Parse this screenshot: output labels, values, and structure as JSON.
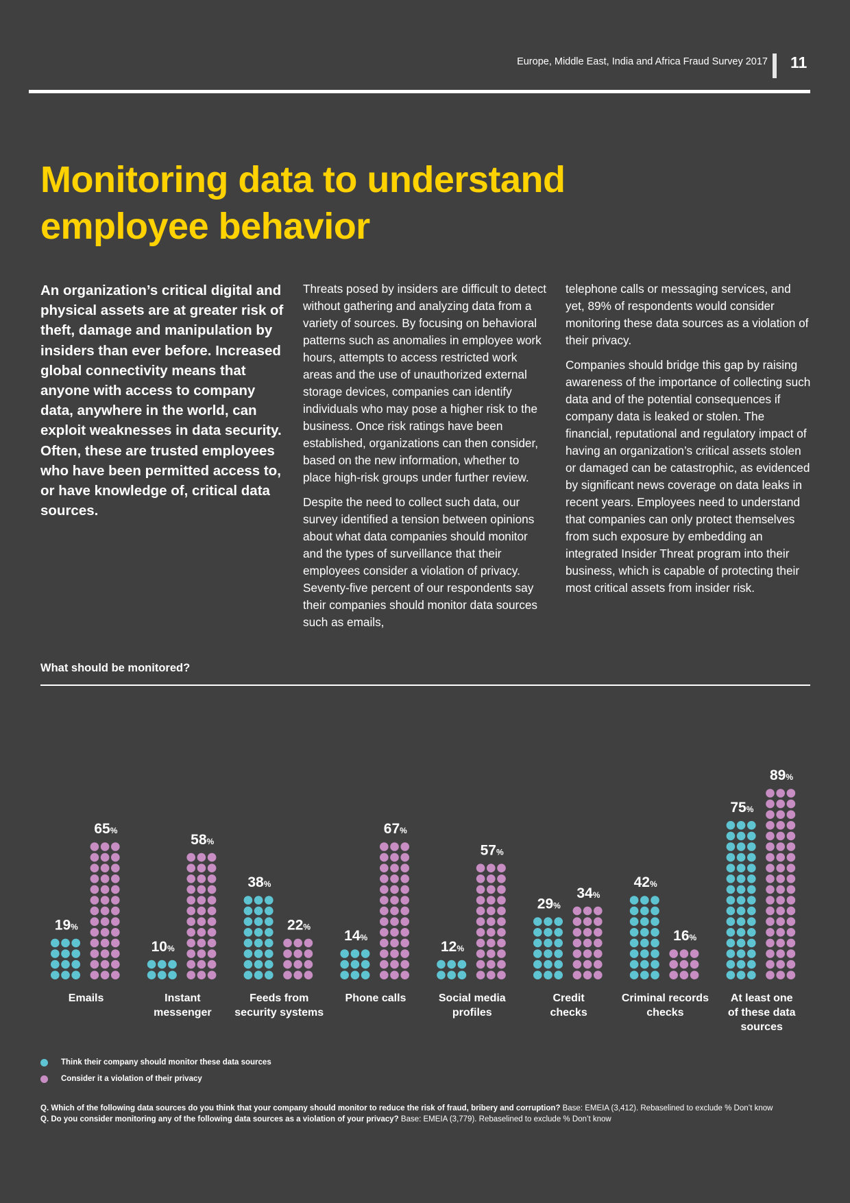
{
  "header": {
    "title": "Europe, Middle East, India and Africa Fraud Survey 2017",
    "page_number": "11"
  },
  "page_title": "Monitoring data to understand employee behavior",
  "intro": "An organization’s critical digital and physical assets are at greater risk of theft, damage and manipulation by insiders than ever before. Increased global connectivity means that anyone with access to company data, anywhere in the world, can exploit weaknesses in data security. Often, these are trusted employees who have been permitted access to, or have knowledge of, critical data sources.",
  "body": {
    "p1": "Threats posed by insiders are difficult to detect without gathering and analyzing data from a variety of sources. By focusing on behavioral patterns such as anomalies in employee work hours, attempts to access restricted work areas and the use of unauthorized external storage devices, companies can identify individuals who may pose a higher risk to the business. Once risk ratings have been established, organizations can then consider, based on the new information, whether to place high-risk groups under further review.",
    "p2": "Despite the need to collect such data, our survey identified a tension between opinions about what data companies should monitor and the types of surveillance that their employees consider a violation of privacy. Seventy-five percent of our respondents say their companies should monitor data sources such as emails,",
    "p3": "telephone calls or messaging services, and yet, 89% of respondents would consider monitoring these data sources as a violation of their privacy.",
    "p4": "Companies should bridge this gap by raising awareness of the importance of collecting such data and of the potential consequences if company data is leaked or stolen. The financial, reputational and regulatory impact of having an organization’s critical assets stolen or damaged can be catastrophic, as evidenced by significant news coverage on data leaks in recent years. Employees need to understand that companies can only protect themselves from such exposure by embedding an integrated Insider Threat program into their business, which is capable of protecting their most critical assets from insider risk."
  },
  "chart_heading": "What should be monitored?",
  "chart_data": {
    "type": "bar",
    "title": "What should be monitored?",
    "categories": [
      "Emails",
      "Instant messenger",
      "Feeds from security systems",
      "Phone calls",
      "Social media profiles",
      "Credit checks",
      "Criminal records checks",
      "At least one of these data sources"
    ],
    "category_lines": [
      [
        "Emails"
      ],
      [
        "Instant",
        "messenger"
      ],
      [
        "Feeds from",
        "security systems"
      ],
      [
        "Phone calls"
      ],
      [
        "Social media",
        "profiles"
      ],
      [
        "Credit",
        "checks"
      ],
      [
        "Criminal records",
        "checks"
      ],
      [
        "At least one",
        "of these data",
        "sources"
      ]
    ],
    "series": [
      {
        "name": "Think their company should monitor these data sources",
        "color": "#5fc4d2",
        "values": [
          19,
          10,
          38,
          14,
          12,
          29,
          42,
          75
        ]
      },
      {
        "name": "Consider it a violation of their privacy",
        "color": "#c88ec4",
        "values": [
          65,
          58,
          22,
          67,
          57,
          34,
          16,
          89
        ]
      }
    ],
    "unit": "%",
    "ylim": [
      0,
      100
    ],
    "grid": false,
    "legend_position": "bottom-left"
  },
  "notes": {
    "q1_bold": "Q. Which of the following data sources do you think that your company should monitor to reduce the risk of fraud, bribery and corruption?",
    "q1_base": " Base: EMEIA (3,412). Rebaselined to exclude % Don’t know",
    "q2_bold": "Q. Do you consider monitoring any of the following data sources as a violation of your privacy?",
    "q2_base": " Base: EMEIA (3,779). Rebaselined to exclude % Don’t know"
  }
}
